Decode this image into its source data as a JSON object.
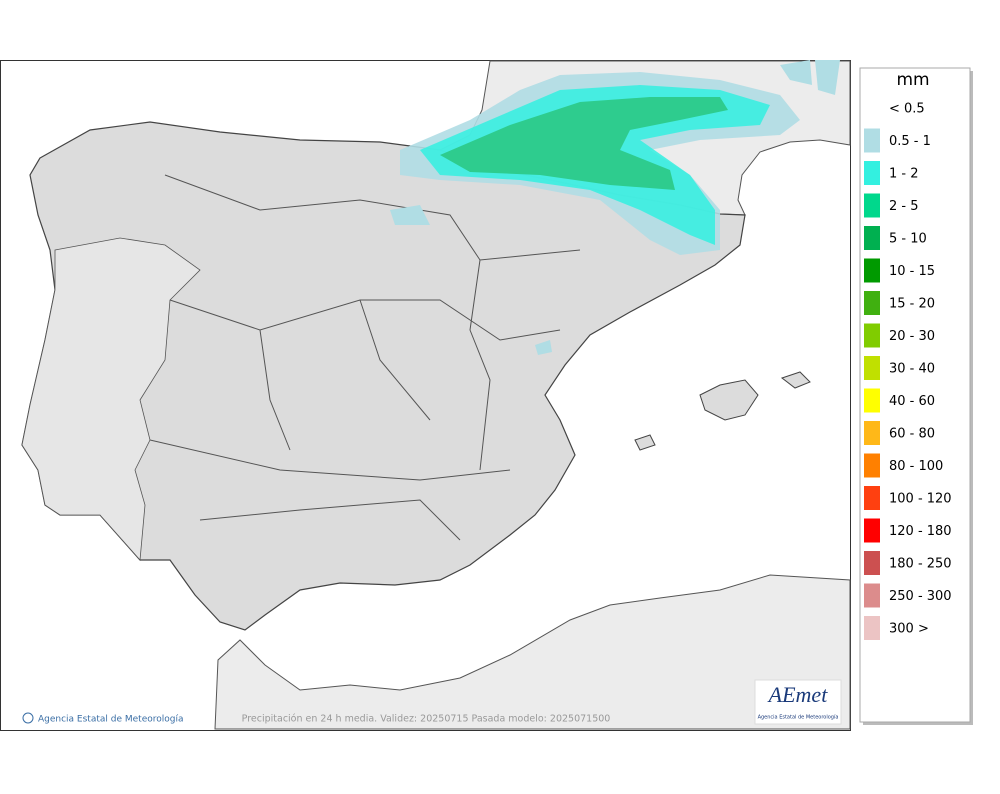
{
  "map": {
    "credit": "Agencia Estatal de Meteorología",
    "caption": "Precipitación en 24 h media. Validez: 20250715 Pasada modelo: 2025071500",
    "logo": {
      "text": "AEmet",
      "subtitle": "Agencia Estatal de Meteorología"
    }
  },
  "legend": {
    "unit": "mm",
    "items": [
      {
        "label": "< 0.5"
      },
      {
        "label": "0.5 - 1",
        "color": "#b0dde4"
      },
      {
        "label": "1 - 2",
        "color": "#33f0e0"
      },
      {
        "label": "2 - 5",
        "color": "#00d88c"
      },
      {
        "label": "5 - 10",
        "color": "#00b050"
      },
      {
        "label": "10 - 15",
        "color": "#009a00"
      },
      {
        "label": "15 - 20",
        "color": "#40b010"
      },
      {
        "label": "20 - 30",
        "color": "#80cc00"
      },
      {
        "label": "30 - 40",
        "color": "#c0e000"
      },
      {
        "label": "40 - 60",
        "color": "#ffff00"
      },
      {
        "label": "60 - 80",
        "color": "#ffb818"
      },
      {
        "label": "80 - 100",
        "color": "#ff8000"
      },
      {
        "label": "100 - 120",
        "color": "#ff4010"
      },
      {
        "label": "120 - 180",
        "color": "#ff0000"
      },
      {
        "label": "180 - 250",
        "color": "#cc5050"
      },
      {
        "label": "250 - 300",
        "color": "#dc8c8c"
      },
      {
        "label": "300 >",
        "color": "#ecc4c4"
      }
    ]
  }
}
